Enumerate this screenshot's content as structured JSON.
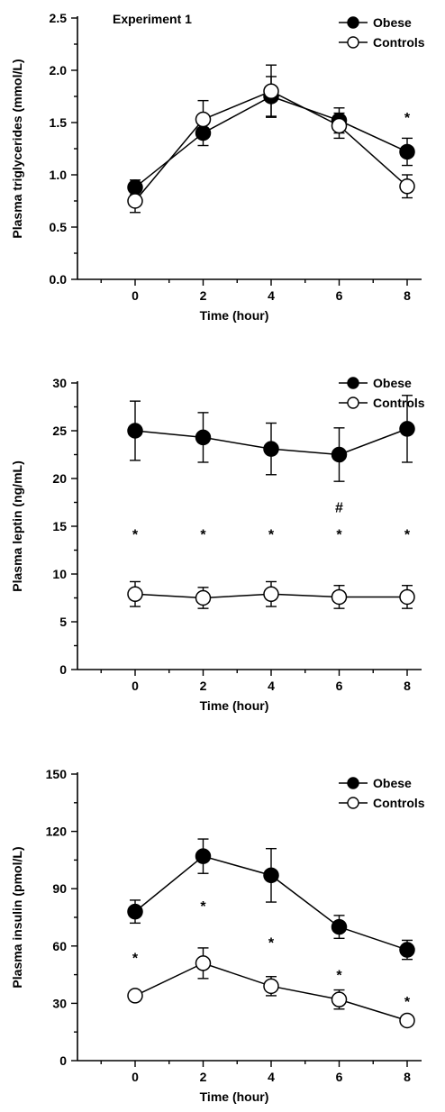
{
  "chart_data": [
    {
      "type": "line",
      "title": "Experiment 1",
      "xlabel": "Time (hour)",
      "ylabel": "Plasma triglycerides (mmol/L)",
      "x": [
        0,
        2,
        4,
        6,
        8
      ],
      "xlim": [
        -1.5,
        8.6
      ],
      "ylim": [
        0,
        2.5
      ],
      "yticks": [
        "0.0",
        "0.5",
        "1.0",
        "1.5",
        "2.0",
        "2.5"
      ],
      "xticks": [
        "0",
        "2",
        "4",
        "6",
        "8"
      ],
      "legend_position": "top-right",
      "series": [
        {
          "name": "Obese",
          "marker": "filled-circle",
          "values": [
            0.88,
            1.4,
            1.75,
            1.52,
            1.22
          ],
          "errors": [
            0.07,
            0.12,
            0.19,
            0.12,
            0.13
          ]
        },
        {
          "name": "Controls",
          "marker": "open-circle",
          "values": [
            0.75,
            1.53,
            1.8,
            1.47,
            0.89
          ],
          "errors": [
            0.11,
            0.18,
            0.25,
            0.12,
            0.11
          ]
        }
      ],
      "annotations": [
        {
          "text": "*",
          "x": 8,
          "y": 1.57
        }
      ]
    },
    {
      "type": "line",
      "xlabel": "Time (hour)",
      "ylabel": "Plasma leptin (ng/mL)",
      "x": [
        0,
        2,
        4,
        6,
        8
      ],
      "xlim": [
        -1.5,
        8.6
      ],
      "ylim": [
        0,
        30
      ],
      "yticks": [
        "0",
        "5",
        "10",
        "15",
        "20",
        "25",
        "30"
      ],
      "xticks": [
        "0",
        "2",
        "4",
        "6",
        "8"
      ],
      "legend_position": "top-right",
      "series": [
        {
          "name": "Obese",
          "marker": "filled-circle",
          "values": [
            25.0,
            24.3,
            23.1,
            22.5,
            25.2
          ],
          "errors": [
            3.1,
            2.6,
            2.7,
            2.8,
            3.5
          ]
        },
        {
          "name": "Controls",
          "marker": "open-circle",
          "values": [
            7.9,
            7.5,
            7.9,
            7.6,
            7.6
          ],
          "errors": [
            1.3,
            1.1,
            1.3,
            1.2,
            1.2
          ]
        }
      ],
      "annotations": [
        {
          "text": "*",
          "x": 0,
          "y": 14.4
        },
        {
          "text": "*",
          "x": 2,
          "y": 14.4
        },
        {
          "text": "*",
          "x": 4,
          "y": 14.4
        },
        {
          "text": "*",
          "x": 6,
          "y": 14.4
        },
        {
          "text": "*",
          "x": 8,
          "y": 14.4
        },
        {
          "text": "#",
          "x": 6,
          "y": 17.2
        }
      ]
    },
    {
      "type": "line",
      "xlabel": "Time (hour)",
      "ylabel": "Plasma insulin (pmol/L)",
      "x": [
        0,
        2,
        4,
        6,
        8
      ],
      "xlim": [
        -1.5,
        8.6
      ],
      "ylim": [
        0,
        150
      ],
      "yticks": [
        "0",
        "30",
        "60",
        "90",
        "120",
        "150"
      ],
      "xticks": [
        "0",
        "2",
        "4",
        "6",
        "8"
      ],
      "legend_position": "top-right",
      "series": [
        {
          "name": "Obese",
          "marker": "filled-circle",
          "values": [
            78,
            107,
            97,
            70,
            58
          ],
          "errors": [
            6,
            9,
            14,
            6,
            5
          ]
        },
        {
          "name": "Controls",
          "marker": "open-circle",
          "values": [
            34,
            51,
            39,
            32,
            21
          ],
          "errors": [
            2,
            8,
            5,
            5,
            2
          ]
        }
      ],
      "annotations": [
        {
          "text": "*",
          "x": 0,
          "y": 55
        },
        {
          "text": "*",
          "x": 2,
          "y": 82
        },
        {
          "text": "*",
          "x": 4,
          "y": 63
        },
        {
          "text": "*",
          "x": 6,
          "y": 46
        },
        {
          "text": "*",
          "x": 8,
          "y": 32
        }
      ]
    }
  ]
}
